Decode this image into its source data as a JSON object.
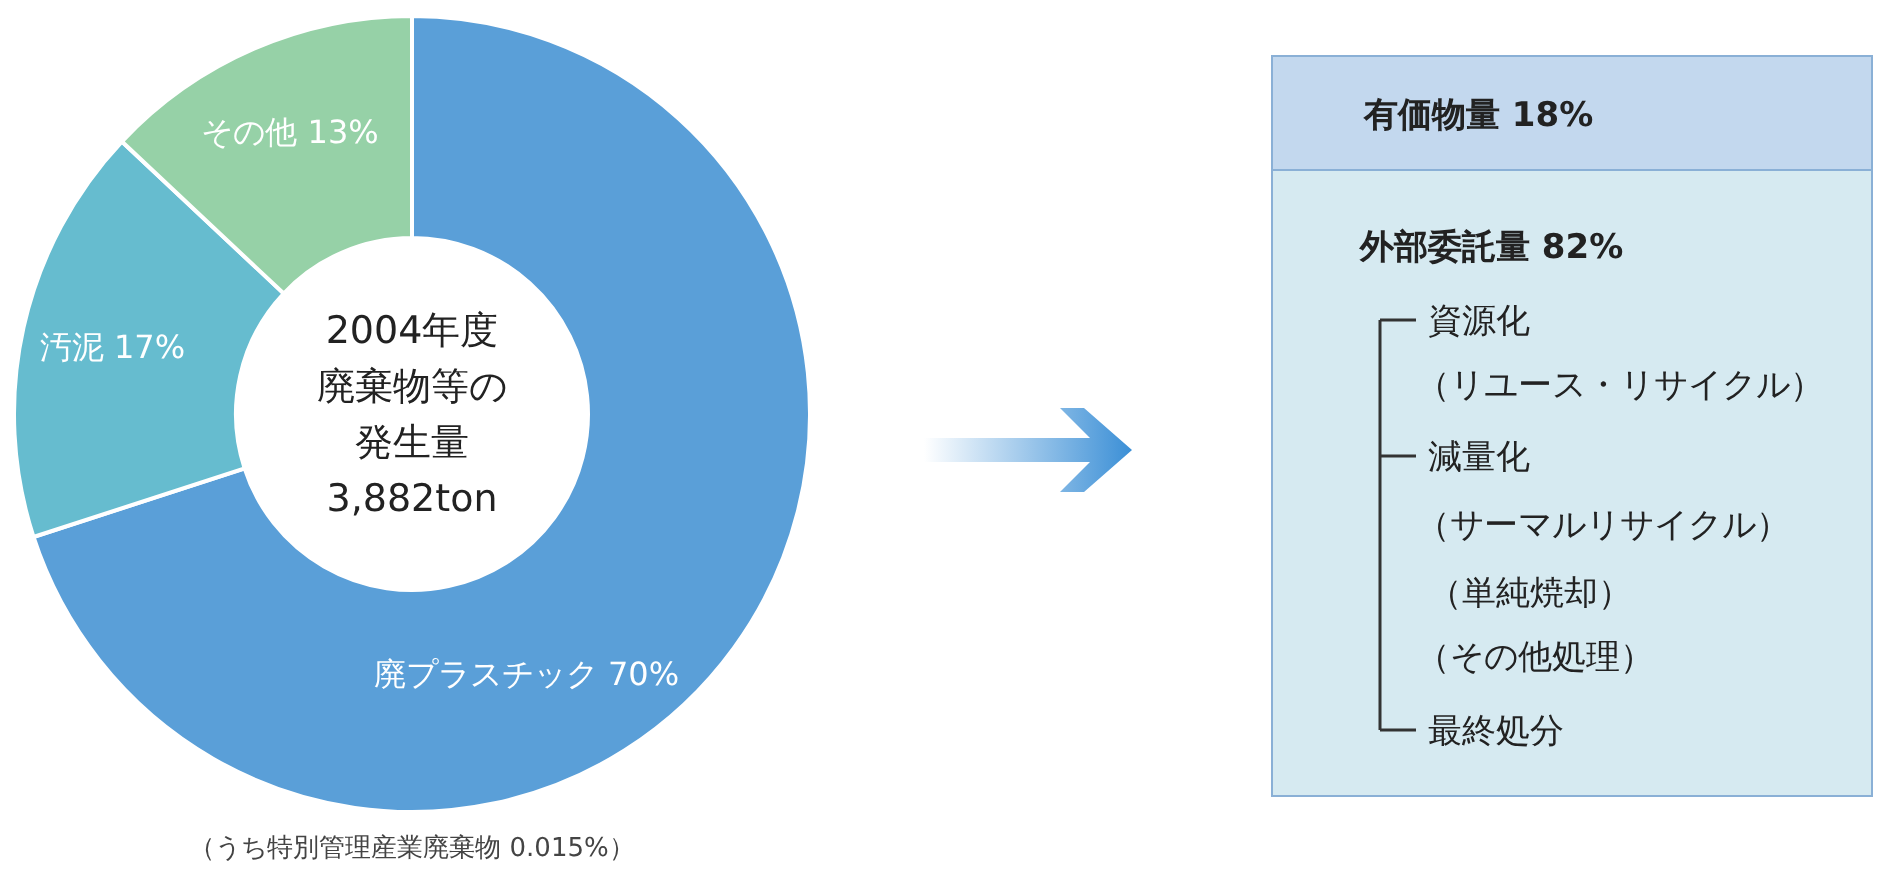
{
  "chart_data": [
    {
      "type": "donut",
      "title": "2004年度廃棄物等の発生量",
      "subtitle": "3,882ton",
      "categories": [
        "廃プラスチック",
        "汚泥",
        "その他"
      ],
      "values": [
        70,
        17,
        13
      ],
      "value_labels": [
        "70%",
        "17%",
        "13%"
      ],
      "colors": [
        "#5a9fd8",
        "#66bccf",
        "#96d1a7"
      ],
      "annotations": [
        "（うち特別管理産業廃棄物 0.015%）"
      ]
    },
    {
      "type": "other",
      "title": "有価物量 18%",
      "subtitle": "外部委託量 82%",
      "annotations": [
        "資源化",
        "（リユース・リサイクル）",
        "減量化",
        "（サーマルリサイクル）",
        "（単純焼却）",
        "（その他処理）",
        "最終処分"
      ]
    }
  ]
}
